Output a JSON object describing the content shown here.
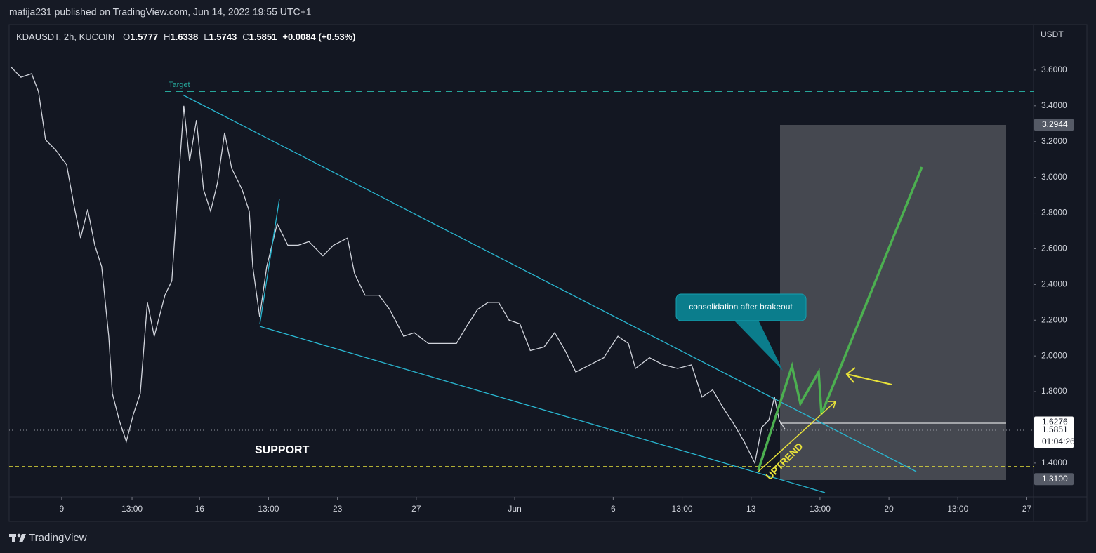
{
  "header": "matija231 published on TradingView.com, Jun 14, 2022 19:55 UTC+1",
  "footer": "TradingView",
  "chart_data": {
    "type": "line",
    "symbol": "KDAUSDT, 2h, KUCOIN",
    "legend_values": [
      {
        "key": "O",
        "value": "1.5777"
      },
      {
        "key": "H",
        "value": "1.6338"
      },
      {
        "key": "L",
        "value": "1.5743"
      },
      {
        "key": "C",
        "value": "1.5851"
      }
    ],
    "change": "+0.0084 (+0.53%)",
    "currency": "USDT",
    "annotations": {
      "target": "Target",
      "support": "SUPPORT",
      "uptrend": "UPTREND",
      "callout": "consolidation after brakeout"
    },
    "countdown": "01:04:26",
    "color": "#d1d4dc",
    "x": [
      6.4,
      6.93,
      7.47,
      7.82,
      8.18,
      8.71,
      9.25,
      9.61,
      9.96,
      10.32,
      10.68,
      11.03,
      11.39,
      11.57,
      11.92,
      12.28,
      12.63,
      12.99,
      13.35,
      13.7,
      14.24,
      14.59,
      14.95,
      15.2,
      15.49,
      15.84,
      16.2,
      16.56,
      16.91,
      17.27,
      17.63,
      18.16,
      18.52,
      18.7,
      19.05,
      19.41,
      19.94,
      20.48,
      21.01,
      21.55,
      22.26,
      22.8,
      23.51,
      23.87,
      24.4,
      25.11,
      25.65,
      26.36,
      26.9,
      27.61,
      28.33,
      29.04,
      29.58,
      30.11,
      30.65,
      31.18,
      31.72,
      32.26,
      32.79,
      33.49,
      34.03,
      34.56,
      35.1,
      35.81,
      36.52,
      37.24,
      37.77,
      38.13,
      38.84,
      39.55,
      40.27,
      40.98,
      41.51,
      42.05,
      42.58,
      43.12,
      43.65,
      44.19,
      44.54,
      44.9,
      45.19,
      45.43,
      45.72
    ],
    "values": [
      3.62,
      3.56,
      3.58,
      3.48,
      3.21,
      3.15,
      3.07,
      2.85,
      2.66,
      2.82,
      2.62,
      2.5,
      2.11,
      1.79,
      1.64,
      1.52,
      1.67,
      1.79,
      2.3,
      2.11,
      2.34,
      2.42,
      3.01,
      3.4,
      3.09,
      3.32,
      2.93,
      2.81,
      2.97,
      3.25,
      3.05,
      2.93,
      2.81,
      2.5,
      2.22,
      2.5,
      2.74,
      2.62,
      2.62,
      2.64,
      2.56,
      2.62,
      2.66,
      2.46,
      2.34,
      2.34,
      2.26,
      2.11,
      2.13,
      2.07,
      2.07,
      2.07,
      2.17,
      2.26,
      2.3,
      2.3,
      2.2,
      2.18,
      2.03,
      2.05,
      2.13,
      2.03,
      1.91,
      1.95,
      1.99,
      2.11,
      2.07,
      1.93,
      1.99,
      1.95,
      1.93,
      1.95,
      1.77,
      1.81,
      1.71,
      1.62,
      1.52,
      1.4,
      1.6,
      1.64,
      1.77,
      1.64,
      1.59
    ],
    "xlim": [
      6.33,
      58.34
    ],
    "ylim": [
      1.211,
      3.855
    ],
    "xticks": [
      9,
      {
        "value": 12.57,
        "label": "13:00"
      },
      16,
      {
        "value": 19.5,
        "label": "13:00"
      },
      23,
      27,
      {
        "value": 32,
        "label": "Jun"
      },
      {
        "value": 37,
        "label": "6"
      },
      {
        "value": 40.5,
        "label": "13:00"
      },
      {
        "value": 44,
        "label": "13"
      },
      {
        "value": 47.5,
        "label": "13:00"
      },
      {
        "value": 51,
        "label": "20"
      },
      {
        "value": 54.5,
        "label": "13:00"
      },
      {
        "value": 58,
        "label": "27"
      }
    ],
    "yticks": [
      {
        "value": 1.4,
        "label": "1.4000"
      },
      {
        "value": 1.6,
        "label": "1.6000"
      },
      {
        "value": 1.8,
        "label": "1.8000"
      },
      {
        "value": 2.0,
        "label": "2.0000"
      },
      {
        "value": 2.2,
        "label": "2.2000"
      },
      {
        "value": 2.4,
        "label": "2.4000"
      },
      {
        "value": 2.6,
        "label": "2.6000"
      },
      {
        "value": 2.8,
        "label": "2.8000"
      },
      {
        "value": 3.0,
        "label": "3.0000"
      },
      {
        "value": 3.2,
        "label": "3.2000"
      },
      {
        "value": 3.4,
        "label": "3.4000"
      },
      {
        "value": 3.6,
        "label": "3.6000"
      }
    ],
    "price_labels": [
      {
        "value": 3.2944,
        "label": "3.2944"
      },
      {
        "value": 1.6276,
        "label": "1.6276"
      },
      {
        "value": 1.5851,
        "label": "1.5851"
      },
      {
        "value": 1.31,
        "label": "1.3100"
      }
    ]
  }
}
